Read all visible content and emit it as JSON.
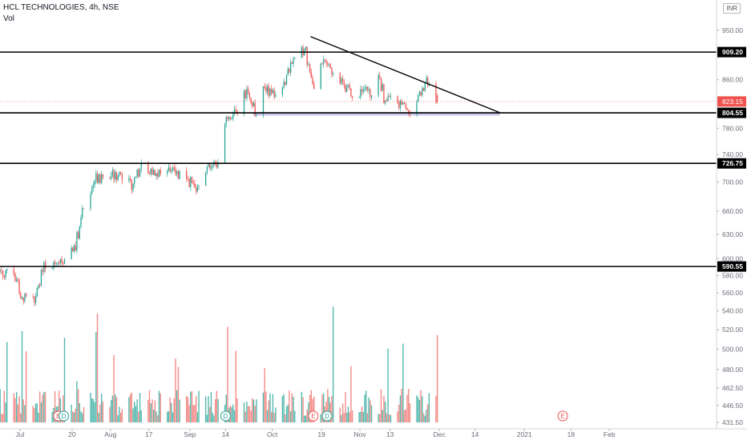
{
  "header": {
    "title": "HCL TECHNOLOGIES, 4h, NSE",
    "volume_label": "Vol",
    "currency": "INR"
  },
  "colors": {
    "up": "#26a69a",
    "down": "#ef5350",
    "up_volume": "#53b9ae",
    "down_volume": "#f38a86",
    "level_line": "#000000",
    "support_zone": "#b9b8e3",
    "price_tag": "#ef5350"
  },
  "chart_data": {
    "type": "candlestick",
    "title": "HCL TECHNOLOGIES, 4h, NSE",
    "x_ticks": [
      "Jul",
      "20",
      "Aug",
      "17",
      "Sep",
      "14",
      "Oct",
      "19",
      "Nov",
      "13",
      "Dec",
      "14",
      "2021",
      "18",
      "Feb"
    ],
    "y_ticks": [
      431.5,
      446.5,
      462.5,
      480,
      500,
      520,
      540,
      560,
      580,
      600,
      630,
      660,
      700,
      740,
      780,
      860,
      950
    ],
    "ylim": [
      431.5,
      1000
    ],
    "y_scale": "log",
    "last_price": 823.15,
    "horizontal_levels": [
      909.2,
      804.55,
      726.75,
      590.55
    ],
    "support_zone": [
      800,
      806
    ],
    "trendline": {
      "from": {
        "date": "2020-10-15",
        "price": 938
      },
      "to": {
        "date": "2020-12-23",
        "price": 805
      }
    },
    "event_markers": [
      {
        "label": "E",
        "date": "2020-07-15"
      },
      {
        "label": "D",
        "date": "2020-07-17"
      },
      {
        "label": "D",
        "date": "2020-09-14"
      },
      {
        "label": "E",
        "date": "2020-10-16"
      },
      {
        "label": "D",
        "date": "2020-10-21"
      },
      {
        "label": "E",
        "date": "2021-01-15"
      }
    ],
    "price_path": [
      {
        "date": "2020-06-24",
        "price": 585
      },
      {
        "date": "2020-06-30",
        "price": 578
      },
      {
        "date": "2020-07-01",
        "price": 555
      },
      {
        "date": "2020-07-06",
        "price": 552
      },
      {
        "date": "2020-07-10",
        "price": 590
      },
      {
        "date": "2020-07-17",
        "price": 594
      },
      {
        "date": "2020-07-21",
        "price": 615
      },
      {
        "date": "2020-07-24",
        "price": 660
      },
      {
        "date": "2020-07-29",
        "price": 705
      },
      {
        "date": "2020-08-05",
        "price": 710
      },
      {
        "date": "2020-08-11",
        "price": 695
      },
      {
        "date": "2020-08-14",
        "price": 722
      },
      {
        "date": "2020-08-21",
        "price": 712
      },
      {
        "date": "2020-08-27",
        "price": 715
      },
      {
        "date": "2020-09-03",
        "price": 694
      },
      {
        "date": "2020-09-08",
        "price": 725
      },
      {
        "date": "2020-09-11",
        "price": 725
      },
      {
        "date": "2020-09-14",
        "price": 795
      },
      {
        "date": "2020-09-18",
        "price": 810
      },
      {
        "date": "2020-09-22",
        "price": 845
      },
      {
        "date": "2020-09-25",
        "price": 800
      },
      {
        "date": "2020-09-28",
        "price": 842
      },
      {
        "date": "2020-10-02",
        "price": 838
      },
      {
        "date": "2020-10-06",
        "price": 860
      },
      {
        "date": "2020-10-09",
        "price": 895
      },
      {
        "date": "2020-10-13",
        "price": 915
      },
      {
        "date": "2020-10-16",
        "price": 850
      },
      {
        "date": "2020-10-20",
        "price": 895
      },
      {
        "date": "2020-10-26",
        "price": 855
      },
      {
        "date": "2020-10-30",
        "price": 838
      },
      {
        "date": "2020-11-04",
        "price": 840
      },
      {
        "date": "2020-11-06",
        "price": 830
      },
      {
        "date": "2020-11-09",
        "price": 868
      },
      {
        "date": "2020-11-11",
        "price": 825
      },
      {
        "date": "2020-11-17",
        "price": 820
      },
      {
        "date": "2020-11-20",
        "price": 805
      },
      {
        "date": "2020-11-24",
        "price": 835
      },
      {
        "date": "2020-11-26",
        "price": 858
      },
      {
        "date": "2020-11-30",
        "price": 823
      }
    ],
    "volume_ylim": [
      0,
      100
    ]
  }
}
